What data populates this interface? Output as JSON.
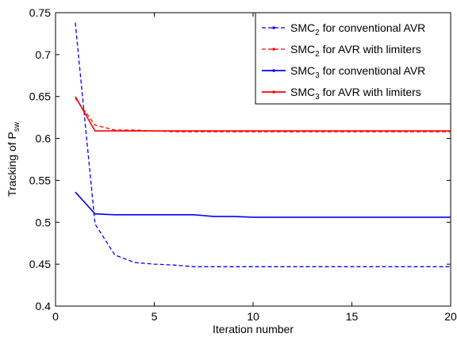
{
  "chart_data": {
    "type": "line",
    "xlabel": "Iteration number",
    "ylabel": "Tracking of P",
    "ylabel_sub": "sw",
    "xlim": [
      0,
      20
    ],
    "ylim": [
      0.4,
      0.75
    ],
    "xticks": [
      0,
      5,
      10,
      15,
      20
    ],
    "xtick_labels": [
      "0",
      "5",
      "10",
      "15",
      "20"
    ],
    "yticks": [
      0.4,
      0.45,
      0.5,
      0.55,
      0.6,
      0.65,
      0.7,
      0.75
    ],
    "ytick_labels": [
      "0.4",
      "0.45",
      "0.5",
      "0.55",
      "0.6",
      "0.65",
      "0.7",
      "0.75"
    ],
    "grid": false,
    "legend_position": "top-right",
    "x": [
      1,
      2,
      3,
      4,
      5,
      6,
      7,
      8,
      9,
      10,
      11,
      12,
      13,
      14,
      15,
      16,
      17,
      18,
      19,
      20
    ],
    "series": [
      {
        "name_main": "SMC",
        "name_sub": "2",
        "name_rest": " for conventional AVR",
        "color": "#0000ff",
        "dash": "dashed",
        "values": [
          0.738,
          0.498,
          0.461,
          0.452,
          0.45,
          0.449,
          0.447,
          0.447,
          0.447,
          0.447,
          0.447,
          0.447,
          0.447,
          0.447,
          0.447,
          0.447,
          0.447,
          0.447,
          0.447,
          0.447
        ]
      },
      {
        "name_main": "SMC",
        "name_sub": "2",
        "name_rest": " for AVR with limiters",
        "color": "#ff0000",
        "dash": "dashed",
        "values": [
          0.648,
          0.616,
          0.61,
          0.61,
          0.609,
          0.608,
          0.608,
          0.608,
          0.608,
          0.608,
          0.608,
          0.608,
          0.608,
          0.608,
          0.608,
          0.608,
          0.608,
          0.608,
          0.608,
          0.608
        ]
      },
      {
        "name_main": "SMC",
        "name_sub": "3",
        "name_rest": " for conventional AVR",
        "color": "#0000ff",
        "dash": "solid",
        "values": [
          0.536,
          0.51,
          0.509,
          0.509,
          0.509,
          0.509,
          0.509,
          0.507,
          0.507,
          0.506,
          0.506,
          0.506,
          0.506,
          0.506,
          0.506,
          0.506,
          0.506,
          0.506,
          0.506,
          0.506
        ]
      },
      {
        "name_main": "SMC",
        "name_sub": "3",
        "name_rest": " for AVR with limiters",
        "color": "#ff0000",
        "dash": "solid",
        "values": [
          0.65,
          0.609,
          0.609,
          0.609,
          0.609,
          0.609,
          0.609,
          0.609,
          0.609,
          0.609,
          0.609,
          0.609,
          0.609,
          0.609,
          0.609,
          0.609,
          0.609,
          0.609,
          0.609,
          0.609
        ]
      }
    ]
  }
}
